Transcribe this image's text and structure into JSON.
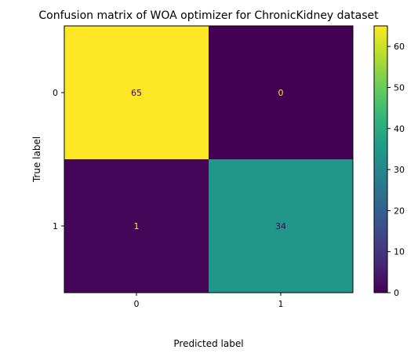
{
  "chart_data": {
    "type": "heatmap",
    "title": "Confusion matrix of WOA optimizer for ChronicKidney dataset",
    "xlabel": "Predicted label",
    "ylabel": "True label",
    "x_categories": [
      "0",
      "1"
    ],
    "y_categories": [
      "0",
      "1"
    ],
    "matrix": [
      [
        65,
        0
      ],
      [
        1,
        34
      ]
    ],
    "colormap": "viridis",
    "colorbar": {
      "min": 0,
      "max": 65,
      "ticks": [
        0,
        10,
        20,
        30,
        40,
        50,
        60
      ]
    },
    "grid": false
  }
}
